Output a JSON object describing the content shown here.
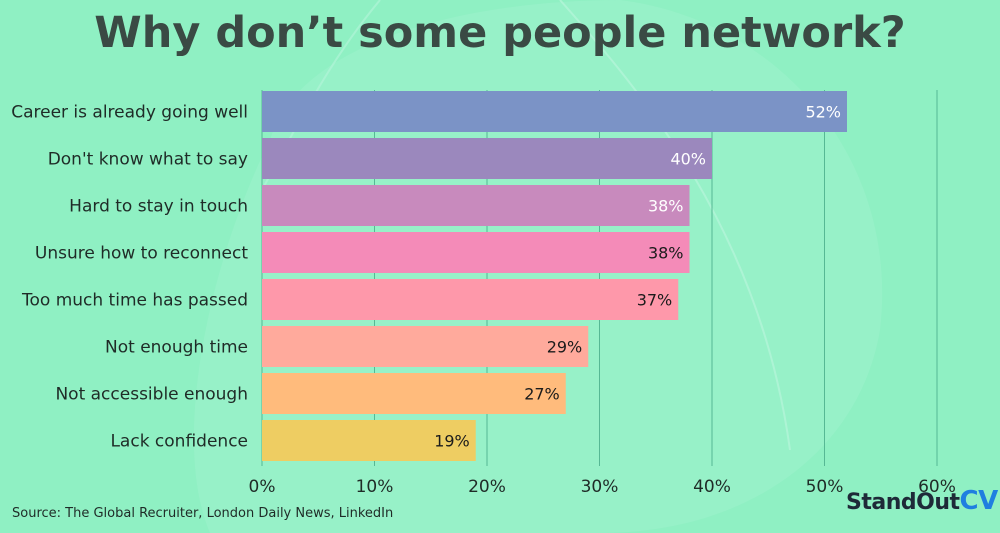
{
  "colors": {
    "background": "#8ff0c3",
    "gridline": "#56b894",
    "label_dark": "#1b1b1b",
    "label_light": "#ffffff"
  },
  "title": "Why don’t some people network?",
  "source": "Source: The Global Recruiter, London Daily News, LinkedIn",
  "logo": {
    "part1": "StandOut",
    "part2": "CV"
  },
  "chart_data": {
    "type": "bar",
    "orientation": "horizontal",
    "categories": [
      "Career is already going well",
      "Don't know what to say",
      "Hard to stay in touch",
      "Unsure how to reconnect",
      "Too much time has passed",
      "Not enough time",
      "Not accessible enough",
      "Lack confidence"
    ],
    "values": [
      52,
      40,
      38,
      38,
      37,
      29,
      27,
      19
    ],
    "value_labels": [
      "52%",
      "40%",
      "38%",
      "38%",
      "37%",
      "29%",
      "27%",
      "19%"
    ],
    "bar_colors": [
      "#7b93c6",
      "#9b88bd",
      "#c88abd",
      "#f48bb8",
      "#fe98aa",
      "#ffaa9c",
      "#ffbb7c",
      "#eecd62"
    ],
    "label_colors": [
      "light",
      "light",
      "light",
      "dark",
      "dark",
      "dark",
      "dark",
      "dark"
    ],
    "xlim": [
      0,
      60
    ],
    "xticks": [
      0,
      10,
      20,
      30,
      40,
      50,
      60
    ],
    "xtick_labels": [
      "0%",
      "10%",
      "20%",
      "30%",
      "40%",
      "50%",
      "60%"
    ],
    "grid": true
  }
}
